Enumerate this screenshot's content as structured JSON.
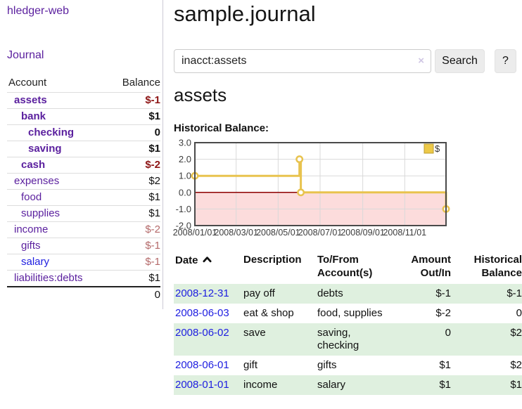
{
  "app_title": "hledger-web",
  "sidebar": {
    "journal_link": "Journal",
    "accounts": {
      "header": {
        "account": "Account",
        "balance": "Balance"
      },
      "rows": [
        {
          "name": "assets",
          "level": 1,
          "bold": true,
          "name_style": "purple",
          "balance": "$-1",
          "balance_style": "dark-red"
        },
        {
          "name": "bank",
          "level": 2,
          "bold": true,
          "name_style": "purple",
          "balance": "$1",
          "balance_style": "black"
        },
        {
          "name": "checking",
          "level": 3,
          "bold": true,
          "name_style": "purple",
          "balance": "0",
          "balance_style": "black"
        },
        {
          "name": "saving",
          "level": 3,
          "bold": true,
          "name_style": "purple",
          "balance": "$1",
          "balance_style": "black"
        },
        {
          "name": "cash",
          "level": 2,
          "bold": true,
          "name_style": "purple",
          "balance": "$-2",
          "balance_style": "dark-red"
        },
        {
          "name": "expenses",
          "level": 1,
          "bold": false,
          "name_style": "purple",
          "balance": "$2",
          "balance_style": "black"
        },
        {
          "name": "food",
          "level": 2,
          "bold": false,
          "name_style": "purple",
          "balance": "$1",
          "balance_style": "black"
        },
        {
          "name": "supplies",
          "level": 2,
          "bold": false,
          "name_style": "purple",
          "balance": "$1",
          "balance_style": "black"
        },
        {
          "name": "income",
          "level": 1,
          "bold": false,
          "name_style": "purple",
          "balance": "$-2",
          "balance_style": "soft-red"
        },
        {
          "name": "gifts",
          "level": 2,
          "bold": false,
          "name_style": "purple",
          "balance": "$-1",
          "balance_style": "soft-red"
        },
        {
          "name": "salary",
          "level": 2,
          "bold": false,
          "name_style": "blue",
          "balance": "$-1",
          "balance_style": "soft-red"
        },
        {
          "name": "liabilities:debts",
          "level": 1,
          "bold": false,
          "name_style": "purple",
          "balance": "$1",
          "balance_style": "black"
        }
      ],
      "total": "0"
    }
  },
  "main": {
    "title": "sample.journal",
    "search": {
      "value": "inacct:assets",
      "clear_icon": "×",
      "search_button": "Search",
      "help_button": "?"
    },
    "account_heading": "assets",
    "chart_label": "Historical Balance:"
  },
  "chart_data": {
    "type": "line",
    "step": true,
    "title": "Historical Balance:",
    "x_range": [
      "2008-01-01",
      "2008-12-31"
    ],
    "ylim": [
      -2,
      3
    ],
    "grid": true,
    "legend_position": "top-right",
    "legend": {
      "label": "$",
      "swatch_color": "#edc948"
    },
    "y_ticks": [
      {
        "value": 3,
        "label": "3.0"
      },
      {
        "value": 2,
        "label": "2.0"
      },
      {
        "value": 1,
        "label": "1.0"
      },
      {
        "value": 0,
        "label": "0.0"
      },
      {
        "value": -1,
        "label": "-1.0"
      },
      {
        "value": -2,
        "label": "-2.0"
      }
    ],
    "x_ticks": [
      {
        "date": "2008-01-01",
        "label": "2008/01/01"
      },
      {
        "date": "2008-03-01",
        "label": "2008/03/01"
      },
      {
        "date": "2008-05-01",
        "label": "2008/05/01"
      },
      {
        "date": "2008-07-01",
        "label": "2008/07/01"
      },
      {
        "date": "2008-09-01",
        "label": "2008/09/01"
      },
      {
        "date": "2008-11-01",
        "label": "2008/11/01"
      }
    ],
    "series": [
      {
        "name": "$",
        "color": "#e8c34e",
        "points": [
          [
            "2008-01-01",
            1
          ],
          [
            "2008-06-01",
            2
          ],
          [
            "2008-06-03",
            0
          ],
          [
            "2008-12-31",
            -1
          ]
        ]
      }
    ],
    "colors": {
      "negative_region": "#fcdcdc",
      "zero_line": "#8b0000",
      "grid": "#d9d9d9",
      "border": "#4a4a4a",
      "marker_fill": "#ffffff",
      "legend_border": "#bb9c2f"
    }
  },
  "transactions": {
    "headers": [
      "Date",
      "Description",
      "To/From Account(s)",
      "Amount Out/In",
      "Historical Balance"
    ],
    "sort_icon": "chevron-up",
    "rows": [
      {
        "date": "2008-12-31",
        "description": "pay off",
        "accounts": "debts",
        "amount": "$-1",
        "balance": "$-1"
      },
      {
        "date": "2008-06-03",
        "description": "eat & shop",
        "accounts": "food, supplies",
        "amount": "$-2",
        "balance": "0"
      },
      {
        "date": "2008-06-02",
        "description": "save",
        "accounts": "saving, checking",
        "amount": "0",
        "balance": "$2"
      },
      {
        "date": "2008-06-01",
        "description": "gift",
        "accounts": "gifts",
        "amount": "$1",
        "balance": "$2"
      },
      {
        "date": "2008-01-01",
        "description": "income",
        "accounts": "salary",
        "amount": "$1",
        "balance": "$1"
      }
    ]
  }
}
